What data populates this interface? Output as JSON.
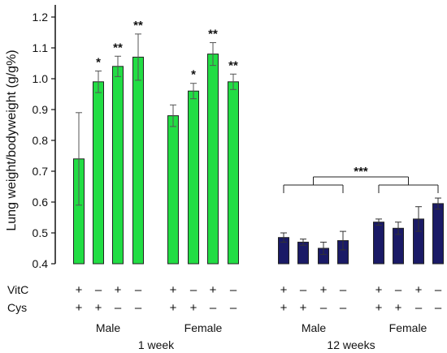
{
  "chart_data": {
    "type": "bar",
    "ylabel": "Lung weight/bodyweight (g/g%)",
    "ylim": [
      0.4,
      1.2
    ],
    "yticks": [
      "0.4",
      "0.5",
      "0.6",
      "0.7",
      "0.8",
      "0.9",
      "1.0",
      "1.1",
      "1.2"
    ],
    "row_labels": [
      "VitC",
      "Cys"
    ],
    "panels": [
      {
        "name": "1 week",
        "color": "#22dd44",
        "groups": [
          {
            "name": "Male",
            "vitc": [
              "+",
              "–",
              "+",
              "–"
            ],
            "cys": [
              "+",
              "+",
              "–",
              "–"
            ],
            "values": [
              0.74,
              0.99,
              1.04,
              1.07
            ],
            "errors": [
              0.15,
              0.035,
              0.033,
              0.075
            ],
            "sig": [
              "",
              "*",
              "**",
              "**"
            ]
          },
          {
            "name": "Female",
            "vitc": [
              "+",
              "–",
              "+",
              "–"
            ],
            "cys": [
              "+",
              "+",
              "–",
              "–"
            ],
            "values": [
              0.88,
              0.96,
              1.08,
              0.99
            ],
            "errors": [
              0.035,
              0.025,
              0.037,
              0.025
            ],
            "sig": [
              "",
              "*",
              "**",
              "**"
            ]
          }
        ]
      },
      {
        "name": "12 weeks",
        "color": "#1a1a66",
        "bracket_label": "***",
        "groups": [
          {
            "name": "Male",
            "vitc": [
              "+",
              "–",
              "+",
              "–"
            ],
            "cys": [
              "+",
              "+",
              "–",
              "–"
            ],
            "values": [
              0.485,
              0.47,
              0.45,
              0.475
            ],
            "errors": [
              0.015,
              0.01,
              0.02,
              0.03
            ],
            "sig": [
              "",
              "",
              "",
              ""
            ]
          },
          {
            "name": "Female",
            "vitc": [
              "+",
              "–",
              "+",
              "–"
            ],
            "cys": [
              "+",
              "+",
              "–",
              "–"
            ],
            "values": [
              0.535,
              0.515,
              0.545,
              0.595
            ],
            "errors": [
              0.01,
              0.02,
              0.04,
              0.018
            ],
            "sig": [
              "",
              "",
              "",
              ""
            ]
          }
        ]
      }
    ]
  }
}
